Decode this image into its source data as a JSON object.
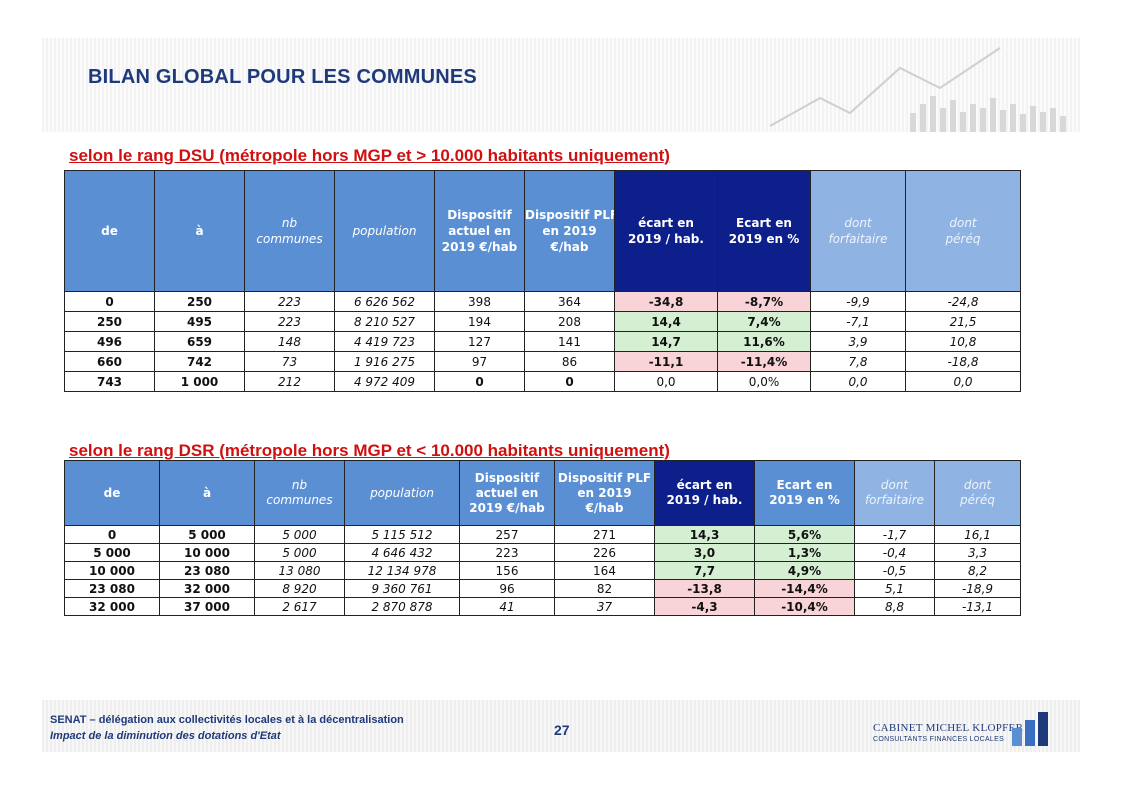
{
  "title": "BILAN GLOBAL POUR LES COMMUNES",
  "colors": {
    "title": "#1f3a7a",
    "section": "#d01010",
    "header": "#5b8fd4",
    "header_dark": "#0c1f8a",
    "header_light": "#8fb3e3",
    "negative_bg": "#f8d3d8",
    "positive_bg": "#d5efd3"
  },
  "sections": {
    "dsu": {
      "title": "selon le rang DSU (métropole hors MGP et > 10.000 habitants uniquement)",
      "headers": {
        "de": "de",
        "a": "à",
        "nb_communes": [
          "nb",
          "communes"
        ],
        "population": "population",
        "dispositif_actuel": [
          "Dispositif",
          "actuel en",
          "2019 €/hab"
        ],
        "dispositif_plf": [
          "Dispositif PLF",
          "en 2019",
          "€/hab"
        ],
        "ecart_hab": [
          "écart en",
          "2019 / hab."
        ],
        "ecart_pct": [
          "Ecart en",
          "2019 en %"
        ],
        "dont_forfaitaire": [
          "dont",
          "forfaitaire"
        ],
        "dont_pereq": [
          "dont",
          "péréq"
        ]
      },
      "rows": [
        {
          "de": "0",
          "a": "250",
          "nb": "223",
          "pop": "6 626 562",
          "actuel": "398",
          "plf": "364",
          "ecart": "-34,8",
          "pct": "-8,7%",
          "forf": "-9,9",
          "pereq": "-24,8"
        },
        {
          "de": "250",
          "a": "495",
          "nb": "223",
          "pop": "8 210 527",
          "actuel": "194",
          "plf": "208",
          "ecart": "14,4",
          "pct": "7,4%",
          "forf": "-7,1",
          "pereq": "21,5"
        },
        {
          "de": "496",
          "a": "659",
          "nb": "148",
          "pop": "4 419 723",
          "actuel": "127",
          "plf": "141",
          "ecart": "14,7",
          "pct": "11,6%",
          "forf": "3,9",
          "pereq": "10,8"
        },
        {
          "de": "660",
          "a": "742",
          "nb": "73",
          "pop": "1 916 275",
          "actuel": "97",
          "plf": "86",
          "ecart": "-11,1",
          "pct": "-11,4%",
          "forf": "7,8",
          "pereq": "-18,8"
        },
        {
          "de": "743",
          "a": "1 000",
          "nb": "212",
          "pop": "4 972 409",
          "actuel": "0",
          "plf": "0",
          "ecart": "0,0",
          "pct": "0,0%",
          "forf": "0,0",
          "pereq": "0,0"
        }
      ]
    },
    "dsr": {
      "title": "selon le rang DSR (métropole hors MGP et < 10.000 habitants uniquement)",
      "headers": {
        "de": "de",
        "a": "à",
        "nb_communes": [
          "nb",
          "communes"
        ],
        "population": "population",
        "dispositif_actuel": [
          "Dispositif",
          "actuel en",
          "2019 €/hab"
        ],
        "dispositif_plf": [
          "Dispositif PLF",
          "en 2019",
          "€/hab"
        ],
        "ecart_hab": [
          "écart en",
          "2019 / hab."
        ],
        "ecart_pct": [
          "Ecart en",
          "2019 en %"
        ],
        "dont_forfaitaire": [
          "dont",
          "forfaitaire"
        ],
        "dont_pereq": [
          "dont",
          "péréq"
        ]
      },
      "rows": [
        {
          "de": "0",
          "a": "5 000",
          "nb": "5 000",
          "pop": "5 115 512",
          "actuel": "257",
          "plf": "271",
          "ecart": "14,3",
          "pct": "5,6%",
          "forf": "-1,7",
          "pereq": "16,1"
        },
        {
          "de": "5 000",
          "a": "10 000",
          "nb": "5 000",
          "pop": "4 646 432",
          "actuel": "223",
          "plf": "226",
          "ecart": "3,0",
          "pct": "1,3%",
          "forf": "-0,4",
          "pereq": "3,3"
        },
        {
          "de": "10 000",
          "a": "23 080",
          "nb": "13 080",
          "pop": "12 134 978",
          "actuel": "156",
          "plf": "164",
          "ecart": "7,7",
          "pct": "4,9%",
          "forf": "-0,5",
          "pereq": "8,2"
        },
        {
          "de": "23 080",
          "a": "32 000",
          "nb": "8 920",
          "pop": "9 360 761",
          "actuel": "96",
          "plf": "82",
          "ecart": "-13,8",
          "pct": "-14,4%",
          "forf": "5,1",
          "pereq": "-18,9"
        },
        {
          "de": "32 000",
          "a": "37 000",
          "nb": "2 617",
          "pop": "2 870 878",
          "actuel": "41",
          "plf": "37",
          "ecart": "-4,3",
          "pct": "-10,4%",
          "forf": "8,8",
          "pereq": "-13,1"
        }
      ]
    }
  },
  "footer": {
    "line1": "SENAT – délégation aux collectivités locales et à la décentralisation",
    "line2": "Impact de la diminution des dotations d'Etat",
    "page_number": "27",
    "logo_name": "CABINET MICHEL KLOPFER",
    "logo_sub": "CONSULTANTS FINANCES LOCALES"
  }
}
